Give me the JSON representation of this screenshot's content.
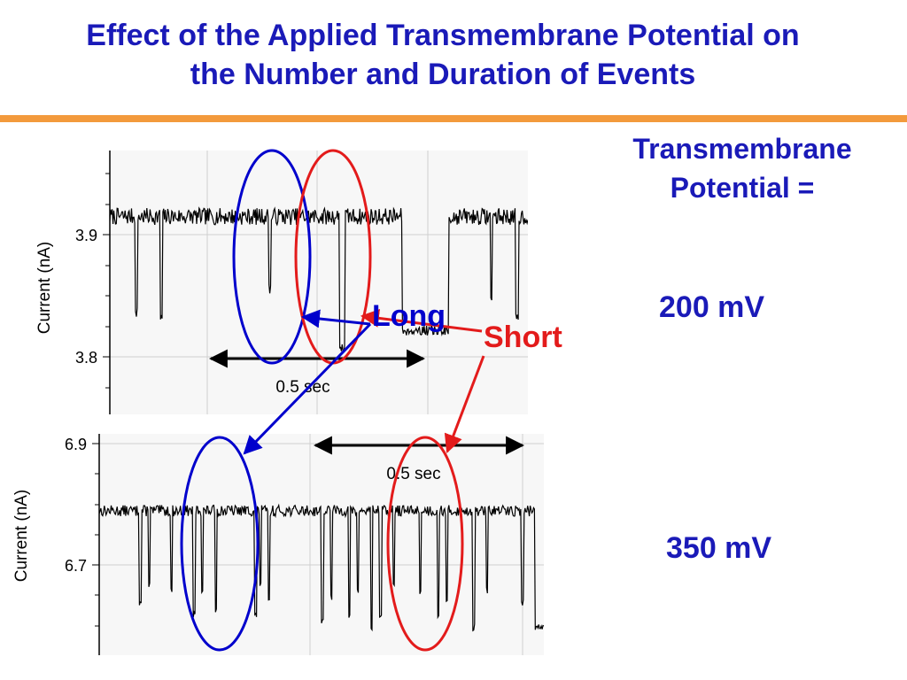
{
  "slide": {
    "title_line1": "Effect of the Applied Transmembrane Potential on",
    "title_line2": "the Number and Duration of Events",
    "side_heading_line1": "Transmembrane",
    "side_heading_line2": "Potential =",
    "voltage_top": "200 mV",
    "voltage_bottom": "350 mV",
    "annotation_long": "Long",
    "annotation_short": "Short",
    "colors": {
      "title": "#1a1ab8",
      "rule": "#f39a3c",
      "long_marker": "#0000cc",
      "short_marker": "#e31b1b"
    }
  },
  "chart_data": [
    {
      "type": "line",
      "ylabel": "Current (nA)",
      "xlabel": "",
      "yticks": [
        "3.9",
        "3.8"
      ],
      "ylim": [
        3.755,
        3.975
      ],
      "grid": true,
      "scale_bar": "0.5 sec",
      "baseline": 3.92,
      "noise": 0.007,
      "series": [
        {
          "x": [
            0,
            0.08,
            0.085,
            0.09,
            0.095,
            0.1,
            0.105,
            0.11,
            0.115,
            0.12,
            0.125,
            0.13,
            0.135,
            0.14,
            0.145,
            0.15,
            0.155,
            0.16,
            0.2,
            0.205,
            0.21,
            0.215,
            0.22,
            0.225,
            0.23,
            0.235,
            0.24,
            0.245,
            0.28,
            0.285,
            0.29,
            0.295,
            0.3,
            0.305,
            0.31,
            0.315,
            0.32,
            0.325,
            0.33,
            0.335,
            0.34,
            0.345,
            0.35,
            0.355,
            0.36,
            0.365,
            0.37,
            0.375,
            0.38,
            0.385,
            0.39,
            0.395,
            0.4,
            0.405,
            0.41,
            0.415,
            0.42,
            0.425,
            0.43,
            0.435,
            0.44,
            0.445,
            0.45,
            0.455,
            0.46,
            0.465,
            0.47,
            0.475,
            0.48,
            0.485,
            0.49,
            0.495,
            0.5,
            0.505,
            0.51,
            0.515,
            0.52,
            0.525,
            0.53,
            0.535,
            0.54,
            0.545,
            0.55,
            0.555,
            0.56,
            0.565,
            0.57,
            0.575,
            0.58,
            0.585,
            0.59,
            0.595,
            0.6,
            0.605,
            0.61,
            0.615,
            0.62,
            0.625,
            0.63,
            0.635,
            0.64,
            0.645,
            0.65,
            0.655,
            0.66,
            0.665,
            0.67,
            0.675,
            0.68,
            0.685,
            0.69,
            0.695,
            0.7,
            0.705,
            0.71,
            0.715,
            0.72,
            0.725,
            0.73,
            0.735,
            0.74,
            0.745,
            0.75,
            0.755,
            0.76,
            0.765,
            0.77,
            0.775,
            0.78,
            0.785,
            0.79,
            0.795,
            0.8,
            0.805,
            0.81,
            0.815,
            0.82,
            0.825,
            0.83,
            0.835,
            0.84,
            0.845,
            0.85,
            0.855,
            0.86,
            0.865,
            0.87,
            0.875,
            0.88,
            0.885,
            0.89,
            0.895,
            0.9,
            0.905,
            0.91,
            0.915,
            0.92,
            0.925,
            0.93,
            0.935,
            0.94,
            0.945,
            0.95,
            0.955,
            0.96,
            0.965,
            0.97,
            0.975,
            0.98,
            0.985,
            0.99,
            0.995,
            1.0,
            1.005,
            1.01,
            1.015,
            1.02,
            1.025,
            1.03,
            1.035,
            1.04,
            1.045,
            1.05,
            1.055,
            1.06,
            1.065,
            1.07,
            1.075,
            1.08,
            1.085,
            1.09,
            1.095,
            1.1,
            1.105,
            1.11,
            1.115,
            1.12,
            1.125,
            1.13,
            1.135,
            1.14,
            1.145,
            1.15,
            1.155,
            1.16,
            1.165,
            1.17,
            1.175,
            1.18,
            1.185,
            1.19,
            1.195,
            1.2,
            1.205,
            1.21,
            1.215,
            1.22,
            1.225,
            1.23,
            1.235,
            1.24,
            1.245,
            1.25,
            1.255,
            1.26,
            1.265,
            1.27,
            1.275,
            1.28,
            1.285,
            1.29,
            1.295,
            1.3,
            1.305,
            1.31,
            1.315,
            1.32,
            1.325,
            1.33,
            1.335,
            1.34,
            1.345,
            1.35,
            1.355,
            1.36,
            1.365,
            1.37,
            1.375,
            1.38,
            1.385,
            1.39,
            1.395,
            1.4,
            1.405,
            1.41,
            1.415,
            1.42,
            1.425,
            1.43,
            1.435,
            1.44,
            1.445,
            1.45,
            1.455,
            1.46,
            1.465,
            1.47,
            1.475,
            1.48,
            1.485,
            1.49,
            1.495,
            1.5,
            1.505,
            1.51,
            1.515,
            1.52,
            1.525,
            1.53,
            1.535,
            1.54,
            1.545,
            1.55,
            1.555,
            1.56,
            1.565,
            1.57,
            1.575,
            1.58,
            1.585,
            1.59,
            1.595,
            1.6,
            1.605,
            1.61,
            1.615,
            1.62,
            1.625,
            1.63,
            1.635,
            1.64,
            1.645,
            1.65,
            1.655,
            1.66,
            1.665,
            1.67,
            1.675,
            1.68,
            1.685,
            1.69,
            1.695,
            1.7,
            1.705,
            1.71,
            1.715,
            1.72,
            1.725,
            1.73,
            1.735,
            1.74,
            1.745,
            1.75,
            1.755,
            1.76,
            1.765,
            1.77,
            1.775,
            1.78,
            1.785,
            1.79,
            1.795,
            1.8,
            1.805,
            1.81,
            1.815,
            1.82,
            1.825,
            1.83,
            1.835,
            1.84,
            1.845,
            1.85,
            1.855,
            1.86,
            1.865,
            1.87,
            1.875,
            1.88,
            1.885,
            1.89,
            1.895,
            1.9,
            1.905,
            1.91,
            1.915,
            1.92,
            1.925,
            1.93,
            1.935,
            1.94,
            1.945,
            1.95,
            1.955,
            1.96,
            1.965,
            1.97,
            1.975,
            1.98,
            1.985,
            1.99,
            1.995,
            2.0
          ],
          "events": [
            [
              0.06,
              0.007,
              3.84
            ],
            [
              0.12,
              0.005,
              3.835
            ],
            [
              0.38,
              0.005,
              3.86
            ],
            [
              0.55,
              0.012,
              3.81
            ],
            [
              0.7,
              0.11,
              3.825
            ],
            [
              0.91,
              0.004,
              3.85
            ],
            [
              0.97,
              0.008,
              3.835
            ]
          ]
        }
      ]
    },
    {
      "type": "line",
      "ylabel": "Current (nA)",
      "xlabel": "",
      "yticks": [
        "6.9",
        "6.7"
      ],
      "ylim": [
        6.555,
        6.915
      ],
      "grid": true,
      "scale_bar": "0.5 sec",
      "baseline": 6.79,
      "noise": 0.009,
      "series": [
        {
          "events": [
            [
              0.09,
              0.006,
              6.64
            ],
            [
              0.11,
              0.004,
              6.67
            ],
            [
              0.16,
              0.005,
              6.66
            ],
            [
              0.21,
              0.006,
              6.62
            ],
            [
              0.23,
              0.004,
              6.66
            ],
            [
              0.26,
              0.005,
              6.63
            ],
            [
              0.35,
              0.005,
              6.62
            ],
            [
              0.36,
              0.004,
              6.67
            ],
            [
              0.38,
              0.004,
              6.64
            ],
            [
              0.5,
              0.005,
              6.61
            ],
            [
              0.52,
              0.004,
              6.65
            ],
            [
              0.56,
              0.005,
              6.62
            ],
            [
              0.58,
              0.004,
              6.66
            ],
            [
              0.61,
              0.005,
              6.6
            ],
            [
              0.63,
              0.006,
              6.62
            ],
            [
              0.66,
              0.004,
              6.67
            ],
            [
              0.72,
              0.004,
              6.66
            ],
            [
              0.76,
              0.005,
              6.62
            ],
            [
              0.78,
              0.004,
              6.64
            ],
            [
              0.84,
              0.006,
              6.6
            ],
            [
              0.87,
              0.004,
              6.66
            ],
            [
              0.95,
              0.004,
              6.64
            ],
            [
              0.98,
              0.05,
              6.6
            ]
          ]
        }
      ]
    }
  ]
}
